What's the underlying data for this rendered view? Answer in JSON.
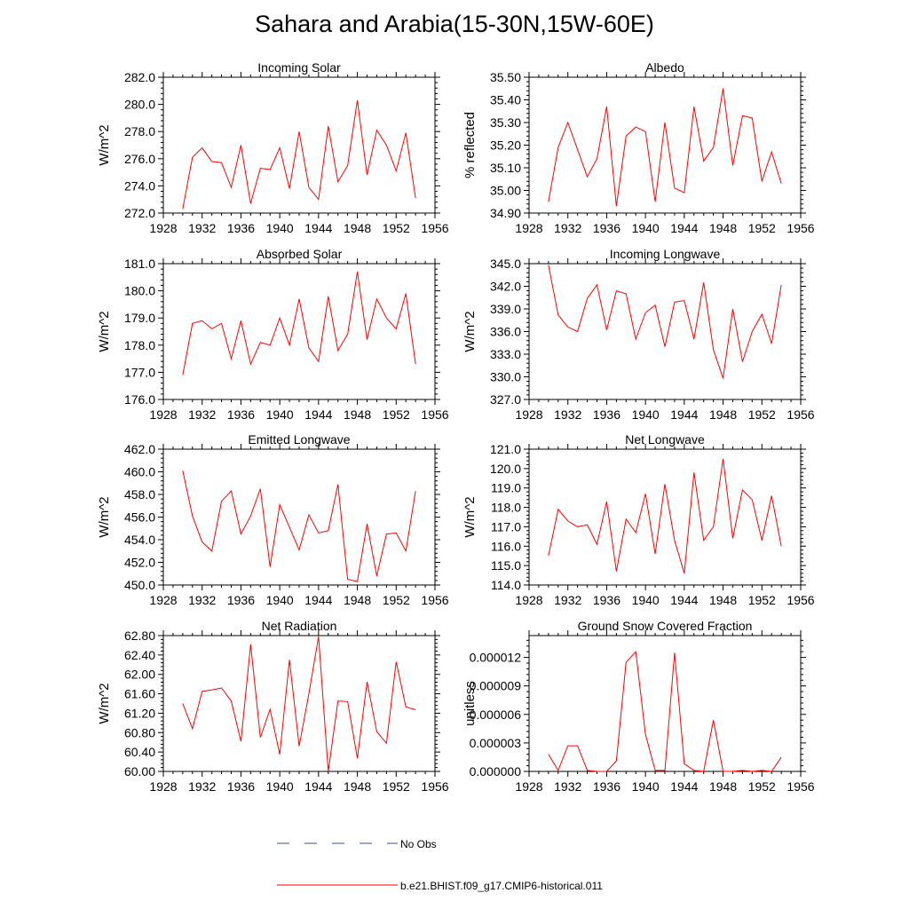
{
  "figure": {
    "title": "Sahara and Arabia(15-30N,15W-60E)"
  },
  "legend": {
    "placement": "bottom-center",
    "entries": [
      {
        "label": "No Obs",
        "color": "#3b4ba8",
        "style": "dashed"
      },
      {
        "label": "b.e21.BHIST.f09_g17.CMIP6-historical.011",
        "color": "#ff0000",
        "style": "solid"
      }
    ]
  },
  "chart_data": [
    {
      "type": "line",
      "title": "Incoming Solar",
      "ylabel": "W/m^2",
      "xlim": [
        1928,
        1956
      ],
      "ylim": [
        272.0,
        282.0
      ],
      "xticks": [
        1928,
        1932,
        1936,
        1940,
        1944,
        1948,
        1952,
        1956
      ],
      "xtick_labels": [
        "1928",
        "1932",
        "1936",
        "1940",
        "1944",
        "1948",
        "1952",
        "1956"
      ],
      "yticks": [
        272.0,
        274.0,
        276.0,
        278.0,
        280.0,
        282.0
      ],
      "ytick_labels": [
        "272.0",
        "274.0",
        "276.0",
        "278.0",
        "280.0",
        "282.0"
      ],
      "x": [
        1930,
        1931,
        1932,
        1933,
        1934,
        1935,
        1936,
        1937,
        1938,
        1939,
        1940,
        1941,
        1942,
        1943,
        1944,
        1945,
        1946,
        1947,
        1948,
        1949,
        1950,
        1951,
        1952,
        1953,
        1954
      ],
      "series": [
        {
          "color": "#ff0000",
          "values": [
            272.3,
            276.1,
            276.8,
            275.8,
            275.7,
            273.9,
            277.0,
            272.7,
            275.3,
            275.2,
            276.8,
            273.8,
            278.0,
            273.9,
            273.0,
            278.4,
            274.3,
            275.5,
            280.3,
            274.8,
            278.1,
            277.0,
            275.1,
            277.9,
            273.1
          ]
        }
      ]
    },
    {
      "type": "line",
      "title": "Albedo",
      "ylabel": "% reflected",
      "xlim": [
        1928,
        1956
      ],
      "ylim": [
        34.9,
        35.5
      ],
      "xticks": [
        1928,
        1932,
        1936,
        1940,
        1944,
        1948,
        1952,
        1956
      ],
      "xtick_labels": [
        "1928",
        "1932",
        "1936",
        "1940",
        "1944",
        "1948",
        "1952",
        "1956"
      ],
      "yticks": [
        34.9,
        35.0,
        35.1,
        35.2,
        35.3,
        35.4,
        35.5
      ],
      "ytick_labels": [
        "34.90",
        "35.00",
        "35.10",
        "35.20",
        "35.30",
        "35.40",
        "35.50"
      ],
      "x": [
        1930,
        1931,
        1932,
        1933,
        1934,
        1935,
        1936,
        1937,
        1938,
        1939,
        1940,
        1941,
        1942,
        1943,
        1944,
        1945,
        1946,
        1947,
        1948,
        1949,
        1950,
        1951,
        1952,
        1953,
        1954
      ],
      "series": [
        {
          "color": "#ff0000",
          "values": [
            34.95,
            35.19,
            35.3,
            35.18,
            35.06,
            35.14,
            35.37,
            34.93,
            35.24,
            35.28,
            35.26,
            34.95,
            35.3,
            35.01,
            34.99,
            35.37,
            35.13,
            35.19,
            35.45,
            35.11,
            35.33,
            35.32,
            35.04,
            35.17,
            35.03
          ]
        }
      ]
    },
    {
      "type": "line",
      "title": "Absorbed Solar",
      "ylabel": "W/m^2",
      "xlim": [
        1928,
        1956
      ],
      "ylim": [
        176.0,
        181.0
      ],
      "xticks": [
        1928,
        1932,
        1936,
        1940,
        1944,
        1948,
        1952,
        1956
      ],
      "xtick_labels": [
        "1928",
        "1932",
        "1936",
        "1940",
        "1944",
        "1948",
        "1952",
        "1956"
      ],
      "yticks": [
        176.0,
        177.0,
        178.0,
        179.0,
        180.0,
        181.0
      ],
      "ytick_labels": [
        "176.0",
        "177.0",
        "178.0",
        "179.0",
        "180.0",
        "181.0"
      ],
      "x": [
        1930,
        1931,
        1932,
        1933,
        1934,
        1935,
        1936,
        1937,
        1938,
        1939,
        1940,
        1941,
        1942,
        1943,
        1944,
        1945,
        1946,
        1947,
        1948,
        1949,
        1950,
        1951,
        1952,
        1953,
        1954
      ],
      "series": [
        {
          "color": "#ff0000",
          "values": [
            176.9,
            178.8,
            178.9,
            178.6,
            178.8,
            177.5,
            178.9,
            177.3,
            178.1,
            178.0,
            179.0,
            178.0,
            179.7,
            177.9,
            177.4,
            179.8,
            177.8,
            178.4,
            180.7,
            178.2,
            179.7,
            179.0,
            178.6,
            179.9,
            177.3
          ]
        }
      ]
    },
    {
      "type": "line",
      "title": "Incoming Longwave",
      "ylabel": "W/m^2",
      "xlim": [
        1928,
        1956
      ],
      "ylim": [
        327.0,
        345.0
      ],
      "xticks": [
        1928,
        1932,
        1936,
        1940,
        1944,
        1948,
        1952,
        1956
      ],
      "xtick_labels": [
        "1928",
        "1932",
        "1936",
        "1940",
        "1944",
        "1948",
        "1952",
        "1956"
      ],
      "yticks": [
        327.0,
        330.0,
        333.0,
        336.0,
        339.0,
        342.0,
        345.0
      ],
      "ytick_labels": [
        "327.0",
        "330.0",
        "333.0",
        "336.0",
        "339.0",
        "342.0",
        "345.0"
      ],
      "x": [
        1930,
        1931,
        1932,
        1933,
        1934,
        1935,
        1936,
        1937,
        1938,
        1939,
        1940,
        1941,
        1942,
        1943,
        1944,
        1945,
        1946,
        1947,
        1948,
        1949,
        1950,
        1951,
        1952,
        1953,
        1954
      ],
      "series": [
        {
          "color": "#ff0000",
          "values": [
            344.8,
            338.2,
            336.6,
            336.0,
            340.4,
            342.2,
            336.2,
            341.4,
            341.0,
            335.0,
            338.5,
            339.5,
            334.0,
            339.9,
            340.1,
            335.0,
            342.5,
            333.6,
            329.8,
            339.0,
            332.0,
            336.0,
            338.3,
            334.4,
            342.2
          ]
        }
      ]
    },
    {
      "type": "line",
      "title": "Emitted Longwave",
      "ylabel": "W/m^2",
      "xlim": [
        1928,
        1956
      ],
      "ylim": [
        450.0,
        462.0
      ],
      "xticks": [
        1928,
        1932,
        1936,
        1940,
        1944,
        1948,
        1952,
        1956
      ],
      "xtick_labels": [
        "1928",
        "1932",
        "1936",
        "1940",
        "1944",
        "1948",
        "1952",
        "1956"
      ],
      "yticks": [
        450.0,
        452.0,
        454.0,
        456.0,
        458.0,
        460.0,
        462.0
      ],
      "ytick_labels": [
        "450.0",
        "452.0",
        "454.0",
        "456.0",
        "458.0",
        "460.0",
        "462.0"
      ],
      "x": [
        1930,
        1931,
        1932,
        1933,
        1934,
        1935,
        1936,
        1937,
        1938,
        1939,
        1940,
        1941,
        1942,
        1943,
        1944,
        1945,
        1946,
        1947,
        1948,
        1949,
        1950,
        1951,
        1952,
        1953,
        1954
      ],
      "series": [
        {
          "color": "#ff0000",
          "values": [
            460.1,
            456.1,
            453.8,
            453.0,
            457.4,
            458.3,
            454.5,
            456.1,
            458.5,
            451.6,
            457.1,
            455.1,
            453.1,
            456.2,
            454.6,
            454.8,
            458.9,
            450.5,
            450.3,
            455.4,
            450.8,
            454.5,
            454.6,
            453.0,
            458.3
          ]
        }
      ]
    },
    {
      "type": "line",
      "title": "Net Longwave",
      "ylabel": "W/m^2",
      "xlim": [
        1928,
        1956
      ],
      "ylim": [
        114.0,
        121.0
      ],
      "xticks": [
        1928,
        1932,
        1936,
        1940,
        1944,
        1948,
        1952,
        1956
      ],
      "xtick_labels": [
        "1928",
        "1932",
        "1936",
        "1940",
        "1944",
        "1948",
        "1952",
        "1956"
      ],
      "yticks": [
        114.0,
        115.0,
        116.0,
        117.0,
        118.0,
        119.0,
        120.0,
        121.0
      ],
      "ytick_labels": [
        "114.0",
        "115.0",
        "116.0",
        "117.0",
        "118.0",
        "119.0",
        "120.0",
        "121.0"
      ],
      "x": [
        1930,
        1931,
        1932,
        1933,
        1934,
        1935,
        1936,
        1937,
        1938,
        1939,
        1940,
        1941,
        1942,
        1943,
        1944,
        1945,
        1946,
        1947,
        1948,
        1949,
        1950,
        1951,
        1952,
        1953,
        1954
      ],
      "series": [
        {
          "color": "#ff0000",
          "values": [
            115.5,
            117.9,
            117.3,
            117.0,
            117.1,
            116.1,
            118.3,
            114.7,
            117.4,
            116.7,
            118.7,
            115.6,
            119.2,
            116.3,
            114.6,
            119.8,
            116.3,
            117.0,
            120.5,
            116.4,
            118.9,
            118.4,
            116.3,
            118.6,
            116.0
          ]
        }
      ]
    },
    {
      "type": "line",
      "title": "Net Radiation",
      "ylabel": "W/m^2",
      "xlim": [
        1928,
        1956
      ],
      "ylim": [
        60.0,
        62.8
      ],
      "xticks": [
        1928,
        1932,
        1936,
        1940,
        1944,
        1948,
        1952,
        1956
      ],
      "xtick_labels": [
        "1928",
        "1932",
        "1936",
        "1940",
        "1944",
        "1948",
        "1952",
        "1956"
      ],
      "yticks": [
        60.0,
        60.4,
        60.8,
        61.2,
        61.6,
        62.0,
        62.4,
        62.8
      ],
      "ytick_labels": [
        "60.00",
        "60.40",
        "60.80",
        "61.20",
        "61.60",
        "62.00",
        "62.40",
        "62.80"
      ],
      "x": [
        1930,
        1931,
        1932,
        1933,
        1934,
        1935,
        1936,
        1937,
        1938,
        1939,
        1940,
        1941,
        1942,
        1943,
        1944,
        1945,
        1946,
        1947,
        1948,
        1949,
        1950,
        1951,
        1952,
        1953,
        1954
      ],
      "series": [
        {
          "color": "#ff0000",
          "values": [
            61.4,
            60.88,
            61.65,
            61.68,
            61.72,
            61.45,
            60.62,
            62.62,
            60.7,
            61.28,
            60.35,
            62.3,
            60.52,
            61.6,
            62.78,
            60.0,
            61.45,
            61.44,
            60.27,
            61.85,
            60.82,
            60.58,
            62.26,
            61.33,
            61.27
          ]
        }
      ]
    },
    {
      "type": "line",
      "title": "Ground Snow Covered Fraction",
      "ylabel": "unitless",
      "xlim": [
        1928,
        1956
      ],
      "ylim": [
        0,
        1.43e-05
      ],
      "xticks": [
        1928,
        1932,
        1936,
        1940,
        1944,
        1948,
        1952,
        1956
      ],
      "xtick_labels": [
        "1928",
        "1932",
        "1936",
        "1940",
        "1944",
        "1948",
        "1952",
        "1956"
      ],
      "yticks": [
        0,
        3e-06,
        6e-06,
        9e-06,
        1.2e-05
      ],
      "ytick_labels": [
        "0.000000",
        "0.000003",
        "0.000006",
        "0.000009",
        "0.000012"
      ],
      "x": [
        1930,
        1931,
        1932,
        1933,
        1934,
        1935,
        1936,
        1937,
        1938,
        1939,
        1940,
        1941,
        1942,
        1943,
        1944,
        1945,
        1946,
        1947,
        1948,
        1949,
        1950,
        1951,
        1952,
        1953,
        1954
      ],
      "series": [
        {
          "color": "#ff0000",
          "values": [
            1.8e-06,
            1e-07,
            2.7e-06,
            2.7e-06,
            1e-07,
            0,
            0,
            1.1e-06,
            1.15e-05,
            1.26e-05,
            3.9e-06,
            1e-07,
            1e-07,
            1.25e-05,
            8e-07,
            1e-07,
            0,
            5.4e-06,
            0,
            0,
            1e-07,
            0,
            1e-07,
            0,
            1.5e-06
          ]
        }
      ]
    }
  ]
}
